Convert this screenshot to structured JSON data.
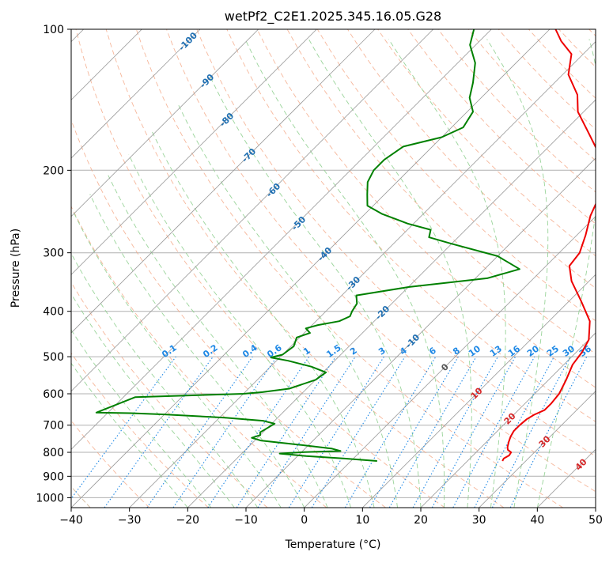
{
  "chart_data": {
    "type": "line",
    "subtype": "skew-t log-p diagram",
    "title": "wetPf2_C2E1.2025.345.16.05.G28",
    "xlabel": "Temperature (°C)",
    "ylabel": "Pressure (hPa)",
    "xlim": [
      -40,
      50
    ],
    "ylim": [
      1050,
      100
    ],
    "yscale": "log",
    "x_ticks": [
      -40,
      -30,
      -20,
      -10,
      0,
      10,
      20,
      30,
      40,
      50
    ],
    "y_ticks": [
      100,
      200,
      300,
      400,
      500,
      600,
      700,
      800,
      900,
      1000
    ],
    "grid": true,
    "colors": {
      "temperature": "#ee0000",
      "dewpoint": "#008000",
      "isotherm": "#999999",
      "dry_adiabat": "#f4a582",
      "moist_adiabat": "#8fcf8f",
      "mixing_ratio": "#1e88e5",
      "ice_line": "#d6bfa3",
      "isotherm_label": "#1f6fb2",
      "hot_isotherm_label": "#d62728"
    },
    "series": [
      {
        "key": "temperature",
        "points": [
          [
            26.0,
            835
          ],
          [
            25.8,
            825
          ],
          [
            26.2,
            812
          ],
          [
            26.0,
            800
          ],
          [
            25.0,
            790
          ],
          [
            24.5,
            780
          ],
          [
            23.8,
            760
          ],
          [
            23.2,
            740
          ],
          [
            22.8,
            720
          ],
          [
            22.8,
            700
          ],
          [
            23.0,
            680
          ],
          [
            23.5,
            665
          ],
          [
            24.5,
            650
          ],
          [
            24.5,
            630
          ],
          [
            24.2,
            600
          ],
          [
            23.0,
            560
          ],
          [
            21.5,
            520
          ],
          [
            21.0,
            490
          ],
          [
            20.0,
            460
          ],
          [
            17.0,
            420
          ],
          [
            12.0,
            380
          ],
          [
            7.0,
            345
          ],
          [
            4.0,
            320
          ],
          [
            3.5,
            300
          ],
          [
            1.5,
            275
          ],
          [
            -1.0,
            250
          ],
          [
            -3.0,
            225
          ],
          [
            -5.5,
            205
          ],
          [
            -10.0,
            185
          ],
          [
            -16.0,
            165
          ],
          [
            -21.0,
            150
          ],
          [
            -24.0,
            138
          ],
          [
            -29.0,
            125
          ],
          [
            -32.0,
            113
          ],
          [
            -36.0,
            106
          ],
          [
            -39.0,
            100
          ]
        ]
      },
      {
        "key": "dewpoint",
        "points": [
          [
            4.5,
            835
          ],
          [
            -1.5,
            825
          ],
          [
            -8.5,
            815
          ],
          [
            -13.5,
            805
          ],
          [
            -9.5,
            799
          ],
          [
            -3.5,
            795
          ],
          [
            -5.5,
            785
          ],
          [
            -12.0,
            770
          ],
          [
            -19.0,
            755
          ],
          [
            -21.0,
            745
          ],
          [
            -20.0,
            735
          ],
          [
            -20.5,
            725
          ],
          [
            -20.0,
            710
          ],
          [
            -19.5,
            695
          ],
          [
            -22.0,
            685
          ],
          [
            -29.0,
            675
          ],
          [
            -40.0,
            664
          ],
          [
            -46.0,
            660
          ],
          [
            -52.0,
            658
          ],
          [
            -48.0,
            610
          ],
          [
            -30.0,
            600
          ],
          [
            -27.0,
            595
          ],
          [
            -23.0,
            585
          ],
          [
            -20.0,
            560
          ],
          [
            -19.5,
            540
          ],
          [
            -23.0,
            525
          ],
          [
            -28.0,
            510
          ],
          [
            -31.5,
            502
          ],
          [
            -30.0,
            495
          ],
          [
            -29.5,
            475
          ],
          [
            -30.5,
            455
          ],
          [
            -29.0,
            445
          ],
          [
            -30.5,
            435
          ],
          [
            -29.0,
            428
          ],
          [
            -26.0,
            420
          ],
          [
            -25.0,
            410
          ],
          [
            -25.5,
            400
          ],
          [
            -26.0,
            385
          ],
          [
            -27.5,
            370
          ],
          [
            -20.0,
            355
          ],
          [
            -8.0,
            340
          ],
          [
            -4.0,
            325
          ],
          [
            -10.0,
            305
          ],
          [
            -20.0,
            287
          ],
          [
            -25.0,
            278
          ],
          [
            -26.0,
            268
          ],
          [
            -31.0,
            260
          ],
          [
            -37.0,
            248
          ],
          [
            -41.0,
            238
          ],
          [
            -43.0,
            225
          ],
          [
            -45.0,
            212
          ],
          [
            -46.0,
            200
          ],
          [
            -46.0,
            190
          ],
          [
            -45.0,
            178
          ],
          [
            -40.0,
            170
          ],
          [
            -38.0,
            162
          ],
          [
            -39.0,
            150
          ],
          [
            -42.0,
            140
          ],
          [
            -44.0,
            130
          ],
          [
            -47.0,
            118
          ],
          [
            -51.0,
            108
          ],
          [
            -53.0,
            100
          ]
        ]
      }
    ],
    "isotherm_labels": [
      "-100",
      "-90",
      "-80",
      "-70",
      "-60",
      "-50",
      "-40",
      "-30",
      "-20",
      "-10",
      "0",
      "10",
      "20",
      "30",
      "40"
    ],
    "mixing_ratio_labels": [
      "0.1",
      "0.2",
      "0.4",
      "0.6",
      "1",
      "1.5",
      "2",
      "3",
      "4",
      "6",
      "8",
      "10",
      "13",
      "16",
      "20",
      "25",
      "30",
      "36"
    ]
  }
}
